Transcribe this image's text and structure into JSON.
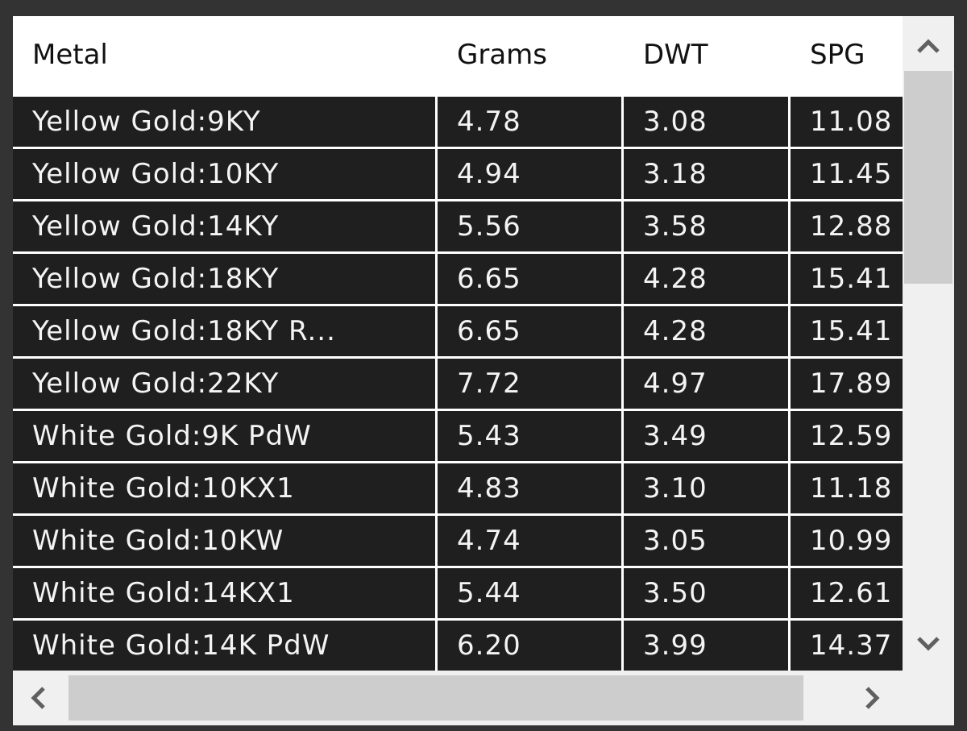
{
  "table": {
    "header": [
      "Metal",
      "Grams",
      "DWT",
      "SPG"
    ],
    "rows": [
      [
        "Yellow Gold:9KY",
        "4.78",
        "3.08",
        "11.08"
      ],
      [
        "Yellow Gold:10KY",
        "4.94",
        "3.18",
        "11.45"
      ],
      [
        "Yellow Gold:14KY",
        "5.56",
        "3.58",
        "12.88"
      ],
      [
        "Yellow Gold:18KY",
        "6.65",
        "4.28",
        "15.41"
      ],
      [
        "Yellow Gold:18KY R...",
        "6.65",
        "4.28",
        "15.41"
      ],
      [
        "Yellow Gold:22KY",
        "7.72",
        "4.97",
        "17.89"
      ],
      [
        "White Gold:9K PdW",
        "5.43",
        "3.49",
        "12.59"
      ],
      [
        "White Gold:10KX1",
        "4.83",
        "3.10",
        "11.18"
      ],
      [
        "White Gold:10KW",
        "4.74",
        "3.05",
        "10.99"
      ],
      [
        "White Gold:14KX1",
        "5.44",
        "3.50",
        "12.61"
      ],
      [
        "White Gold:14K PdW",
        "6.20",
        "3.99",
        "14.37"
      ]
    ]
  }
}
